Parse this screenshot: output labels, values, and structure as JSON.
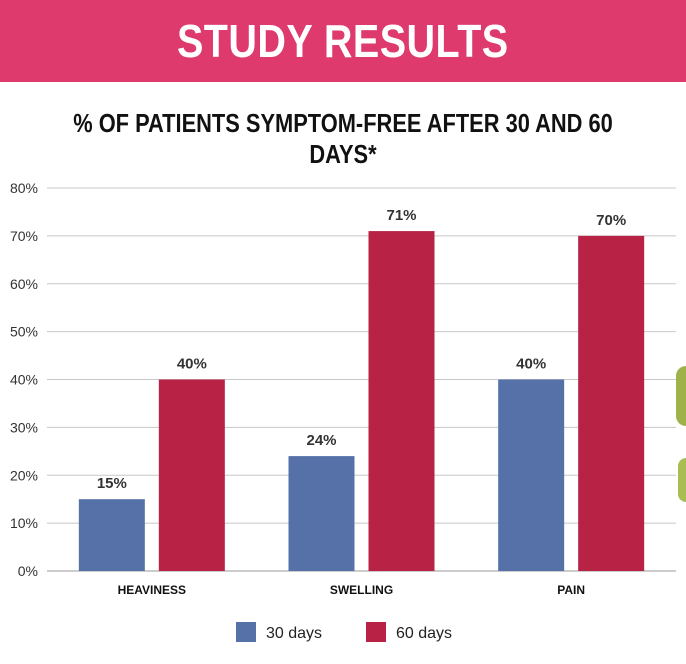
{
  "header": {
    "title": "STUDY RESULTS",
    "subtitle": "% OF PATIENTS SYMPTOM-FREE AFTER 30 AND 60 DAYS*"
  },
  "colors": {
    "banner": "#de3a6e",
    "series_30": "#5671a8",
    "series_60": "#b72245"
  },
  "chart_data": {
    "type": "bar",
    "title": "% OF PATIENTS SYMPTOM-FREE AFTER 30 AND 60 DAYS*",
    "categories": [
      "HEAVINESS",
      "SWELLING",
      "PAIN"
    ],
    "series": [
      {
        "name": "30 days",
        "values": [
          15,
          24,
          40
        ],
        "labels": [
          "15%",
          "24%",
          "40%"
        ],
        "color": "#5671a8"
      },
      {
        "name": "60 days",
        "values": [
          40,
          71,
          70
        ],
        "labels": [
          "40%",
          "71%",
          "70%"
        ],
        "color": "#b72245"
      }
    ],
    "ylim": [
      0,
      80
    ],
    "yticks": [
      0,
      10,
      20,
      30,
      40,
      50,
      60,
      70,
      80
    ],
    "ytick_labels": [
      "0%",
      "10%",
      "20%",
      "30%",
      "40%",
      "50%",
      "60%",
      "70%",
      "80%"
    ],
    "xlabel": "",
    "ylabel": "",
    "grid": true,
    "legend_position": "bottom-center"
  }
}
